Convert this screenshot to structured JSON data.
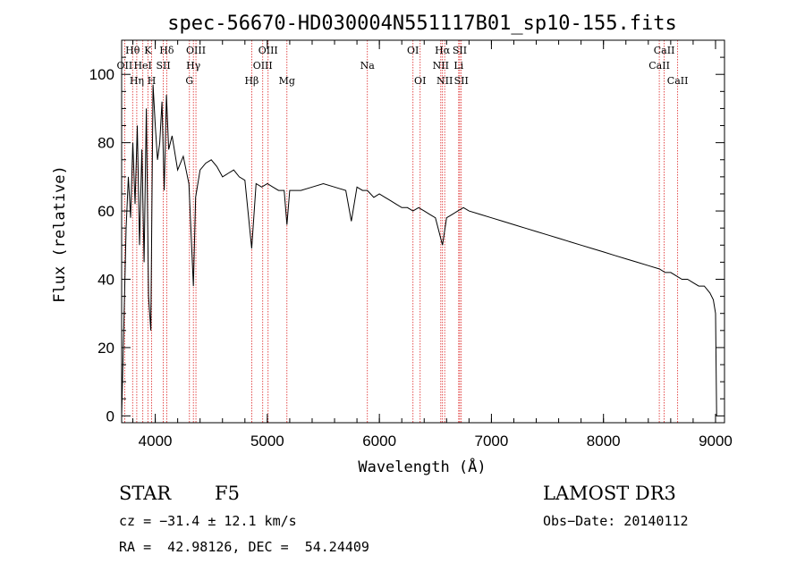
{
  "chart_data": {
    "type": "line",
    "title": "spec-56670-HD030004N551117B01_sp10-155.fits",
    "xlabel": "Wavelength (Å)",
    "ylabel": "Flux (relative)",
    "xlim": [
      3700,
      9080
    ],
    "ylim": [
      -2,
      110
    ],
    "xticks": [
      4000,
      5000,
      6000,
      7000,
      8000,
      9000
    ],
    "yticks": [
      0,
      20,
      40,
      60,
      80,
      100
    ],
    "series": [
      {
        "name": "flux",
        "x": [
          3700,
          3720,
          3740,
          3760,
          3780,
          3800,
          3820,
          3840,
          3860,
          3880,
          3900,
          3920,
          3940,
          3960,
          3970,
          3980,
          4000,
          4020,
          4040,
          4060,
          4080,
          4100,
          4120,
          4150,
          4200,
          4250,
          4300,
          4340,
          4360,
          4400,
          4450,
          4500,
          4550,
          4600,
          4650,
          4700,
          4750,
          4800,
          4861,
          4900,
          4950,
          5000,
          5050,
          5100,
          5150,
          5175,
          5200,
          5300,
          5400,
          5500,
          5600,
          5700,
          5750,
          5800,
          5850,
          5893,
          5950,
          6000,
          6050,
          6100,
          6150,
          6200,
          6250,
          6300,
          6350,
          6400,
          6450,
          6500,
          6563,
          6600,
          6650,
          6700,
          6750,
          6800,
          6900,
          7000,
          7100,
          7200,
          7300,
          7400,
          7500,
          7600,
          7700,
          7800,
          7900,
          8000,
          8100,
          8200,
          8300,
          8400,
          8500,
          8550,
          8600,
          8650,
          8700,
          8750,
          8800,
          8850,
          8900,
          8950,
          8980,
          9000,
          9010
        ],
        "y": [
          0,
          27,
          55,
          70,
          58,
          80,
          62,
          85,
          50,
          78,
          45,
          90,
          35,
          25,
          60,
          97,
          85,
          75,
          80,
          92,
          66,
          94,
          78,
          82,
          72,
          76,
          68,
          38,
          64,
          72,
          74,
          75,
          73,
          70,
          71,
          72,
          70,
          69,
          49,
          68,
          67,
          68,
          67,
          66,
          66,
          56,
          66,
          66,
          67,
          68,
          67,
          66,
          57,
          67,
          66,
          66,
          64,
          65,
          64,
          63,
          62,
          61,
          61,
          60,
          61,
          60,
          59,
          58,
          50,
          58,
          59,
          60,
          61,
          60,
          59,
          58,
          57,
          56,
          55,
          54,
          53,
          52,
          51,
          50,
          49,
          48,
          47,
          46,
          45,
          44,
          43,
          42,
          42,
          41,
          40,
          40,
          39,
          38,
          38,
          36,
          34,
          30,
          0
        ]
      }
    ],
    "line_markers": [
      {
        "label": "OII",
        "wl": 3727,
        "row": 1
      },
      {
        "label": "Hθ",
        "wl": 3798,
        "row": 0
      },
      {
        "label": "Hη",
        "wl": 3835,
        "row": 2
      },
      {
        "label": "HeI",
        "wl": 3889,
        "row": 1
      },
      {
        "label": "K",
        "wl": 3934,
        "row": 0
      },
      {
        "label": "H",
        "wl": 3968,
        "row": 2
      },
      {
        "label": "SII",
        "wl": 4072,
        "row": 1
      },
      {
        "label": "Hδ",
        "wl": 4102,
        "row": 0
      },
      {
        "label": "OIII",
        "wl": 4363,
        "row": 0
      },
      {
        "label": "Hγ",
        "wl": 4340,
        "row": 1
      },
      {
        "label": "G",
        "wl": 4305,
        "row": 2
      },
      {
        "label": "Hβ",
        "wl": 4861,
        "row": 2
      },
      {
        "label": "OIII",
        "wl": 5007,
        "row": 0
      },
      {
        "label": "OIII",
        "wl": 4959,
        "row": 1
      },
      {
        "label": "Mg",
        "wl": 5175,
        "row": 2
      },
      {
        "label": "Na",
        "wl": 5893,
        "row": 1
      },
      {
        "label": "OI",
        "wl": 6300,
        "row": 0
      },
      {
        "label": "OI",
        "wl": 6364,
        "row": 2
      },
      {
        "label": "Hα",
        "wl": 6563,
        "row": 0
      },
      {
        "label": "NII",
        "wl": 6548,
        "row": 1
      },
      {
        "label": "NII",
        "wl": 6583,
        "row": 2
      },
      {
        "label": "SII",
        "wl": 6717,
        "row": 0
      },
      {
        "label": "Li",
        "wl": 6708,
        "row": 1
      },
      {
        "label": "SII",
        "wl": 6731,
        "row": 2
      },
      {
        "label": "CaII",
        "wl": 8542,
        "row": 0
      },
      {
        "label": "CaII",
        "wl": 8498,
        "row": 1
      },
      {
        "label": "CaII",
        "wl": 8662,
        "row": 2
      }
    ]
  },
  "info": {
    "object_class": "STAR",
    "subclass": "F5",
    "survey": "LAMOST DR3",
    "cz": "cz = −31.4 ± 12.1 km/s",
    "obs_date": "Obs−Date: 20140112",
    "coords": "RA =  42.98126, DEC =  54.24409"
  }
}
